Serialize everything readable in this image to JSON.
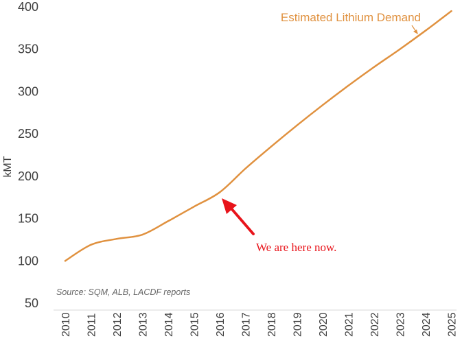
{
  "chart_data": {
    "type": "line",
    "title": "",
    "xlabel": "",
    "ylabel": "kMT",
    "x": [
      "2010",
      "2011",
      "2012",
      "2013",
      "2014",
      "2015",
      "2016",
      "2017",
      "2018",
      "2019",
      "2020",
      "2021",
      "2022",
      "2023",
      "2024",
      "2025"
    ],
    "series": [
      {
        "name": "Estimated Lithium Demand",
        "values": [
          100,
          119,
          126,
          131,
          147,
          164,
          181,
          209,
          235,
          260,
          284,
          307,
          329,
          350,
          372,
          395
        ],
        "color": "#E0913F"
      }
    ],
    "ylim": [
      50,
      400
    ],
    "yticks": [
      50,
      100,
      150,
      200,
      250,
      300,
      350,
      400
    ],
    "grid": false,
    "annotations": {
      "series_label": "Estimated Lithium Demand",
      "here_label": "We are here now.",
      "here_x": "2016",
      "here_color": "#E8141B",
      "source": "Source: SQM, ALB, LACDF reports"
    }
  }
}
